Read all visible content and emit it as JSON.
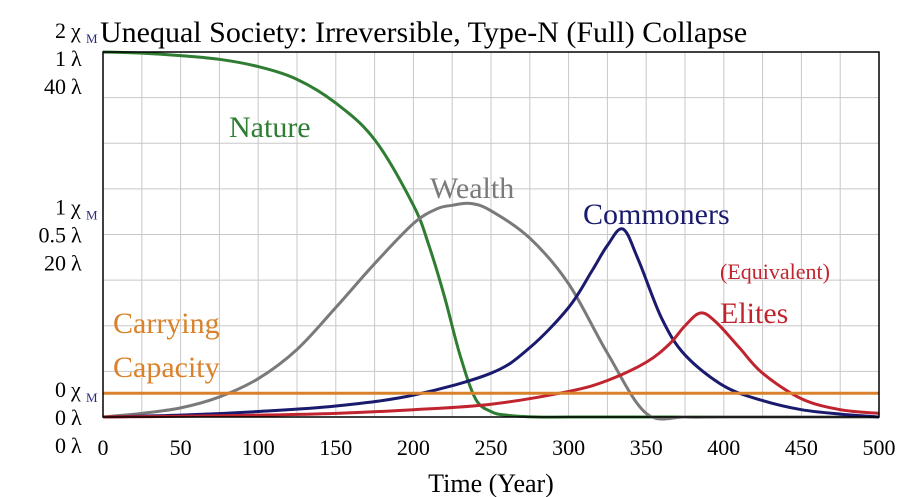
{
  "chart_data": {
    "type": "line",
    "title": "Unequal Society: Irreversible, Type-N (Full) Collapse",
    "xlabel": "Time (Year)",
    "xlim": [
      0,
      500
    ],
    "x_ticks": [
      "0",
      "50",
      "100",
      "150",
      "200",
      "250",
      "300",
      "350",
      "400",
      "450",
      "500"
    ],
    "grid": true,
    "y_axis_groups": [
      {
        "name": "χ",
        "subscript": "M",
        "color": "#2b2b7a",
        "ticks": [
          "0",
          "1",
          "2"
        ]
      },
      {
        "name": "λ",
        "color": "#2e7d32",
        "ticks": [
          "0",
          "0.5",
          "1"
        ]
      },
      {
        "name": "λ",
        "color": "#555555",
        "ticks": [
          "0",
          "20",
          "40"
        ]
      }
    ],
    "series": [
      {
        "name": "Nature",
        "color": "#2e7d32",
        "x": [
          0,
          25,
          50,
          75,
          100,
          125,
          150,
          175,
          200,
          210,
          220,
          230,
          240,
          250,
          260,
          280,
          300,
          350,
          400,
          450,
          500
        ],
        "y": [
          1.0,
          0.997,
          0.99,
          0.98,
          0.96,
          0.925,
          0.86,
          0.76,
          0.58,
          0.47,
          0.33,
          0.17,
          0.05,
          0.015,
          0.005,
          0.0,
          0.0,
          0.0,
          0.0,
          0.0,
          0.0
        ]
      },
      {
        "name": "Wealth",
        "color": "#7a7a7a",
        "x": [
          0,
          25,
          50,
          75,
          100,
          125,
          150,
          175,
          200,
          215,
          225,
          237,
          250,
          275,
          300,
          325,
          350,
          375,
          400,
          450,
          500
        ],
        "y": [
          0.0,
          0.01,
          0.025,
          0.055,
          0.105,
          0.185,
          0.3,
          0.42,
          0.53,
          0.57,
          0.58,
          0.585,
          0.565,
          0.49,
          0.365,
          0.175,
          0.01,
          0.0,
          0.0,
          0.0,
          0.0
        ]
      },
      {
        "name": "Commoners",
        "color": "#1a1a6e",
        "x": [
          0,
          50,
          100,
          150,
          200,
          250,
          275,
          300,
          315,
          325,
          335,
          345,
          360,
          375,
          400,
          425,
          450,
          475,
          500
        ],
        "y": [
          0.0,
          0.005,
          0.015,
          0.03,
          0.06,
          0.12,
          0.19,
          0.3,
          0.4,
          0.47,
          0.515,
          0.43,
          0.27,
          0.17,
          0.085,
          0.045,
          0.02,
          0.008,
          0.0
        ]
      },
      {
        "name": "Elites",
        "label_note": "(Equivalent)",
        "color": "#c0252f",
        "x": [
          0,
          50,
          100,
          150,
          200,
          250,
          300,
          325,
          350,
          365,
          375,
          385,
          395,
          410,
          425,
          450,
          475,
          500
        ],
        "y": [
          0.0,
          0.002,
          0.005,
          0.01,
          0.02,
          0.035,
          0.07,
          0.1,
          0.15,
          0.2,
          0.25,
          0.285,
          0.26,
          0.19,
          0.12,
          0.05,
          0.02,
          0.01
        ]
      },
      {
        "name": "Carrying Capacity",
        "color": "#d9822b",
        "x": [
          0,
          500
        ],
        "y": [
          0.065,
          0.065
        ]
      }
    ]
  }
}
